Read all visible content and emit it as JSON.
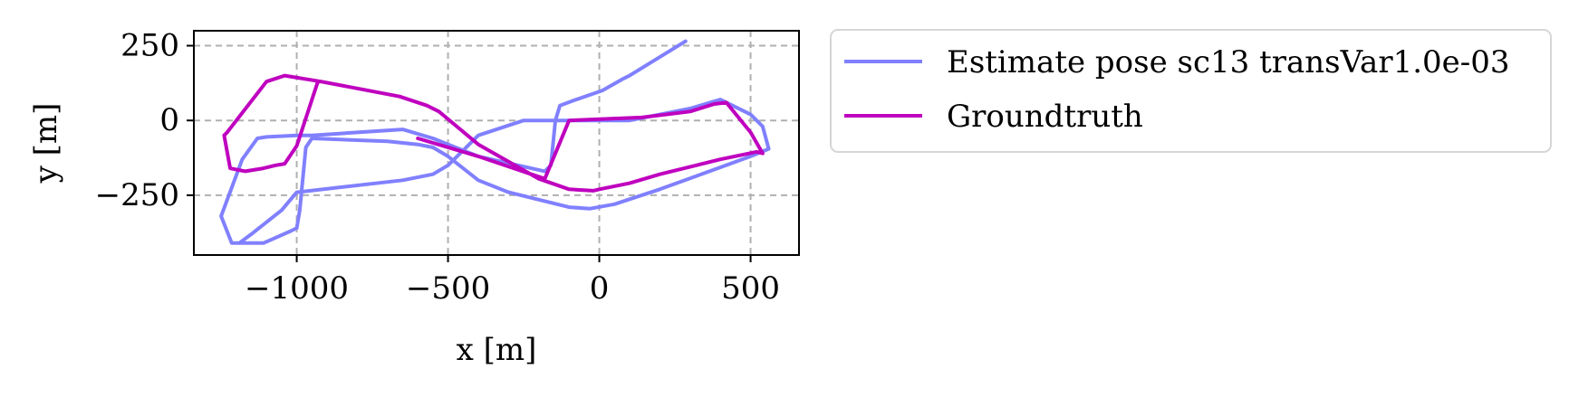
{
  "chart_data": {
    "type": "line",
    "title": "",
    "xlabel": "x [m]",
    "ylabel": "y [m]",
    "xlim": [
      -1340,
      660
    ],
    "ylim": [
      -450,
      300
    ],
    "xticks": [
      -1000,
      -500,
      0,
      500
    ],
    "xtick_labels": [
      "−1000",
      "−500",
      "0",
      "500"
    ],
    "yticks": [
      250,
      0,
      -250
    ],
    "ytick_labels": [
      "250",
      "0",
      "−250"
    ],
    "grid": true,
    "legend_position": "outside-top-right",
    "series": [
      {
        "name": "Estimate pose sc13 transVar1.0e-03",
        "color": "#8080ff",
        "x": [
          285,
          100,
          80,
          10,
          -90,
          -130,
          -145,
          -160,
          -180,
          -400,
          -450,
          -550,
          -650,
          -800,
          -950,
          -1000,
          -1100,
          -1130,
          -1180,
          -1250,
          -1215,
          -1110,
          -1020,
          -1000,
          -990,
          -970,
          -950,
          -700,
          -600,
          -550,
          -500,
          -400,
          -300,
          -100,
          -30,
          50,
          200,
          500,
          560,
          540,
          500,
          400,
          300,
          100,
          -100,
          -250,
          -400,
          -450,
          -500,
          -550,
          -650,
          -1000,
          -1050,
          -1150,
          -1190
        ],
        "y": [
          265,
          150,
          140,
          100,
          65,
          50,
          0,
          -150,
          -170,
          -120,
          -100,
          -60,
          -30,
          -40,
          -50,
          -50,
          -55,
          -60,
          -130,
          -320,
          -410,
          -410,
          -370,
          -360,
          -300,
          -90,
          -60,
          -70,
          -80,
          -90,
          -120,
          -200,
          -240,
          -290,
          -295,
          -280,
          -230,
          -120,
          -95,
          -20,
          20,
          70,
          40,
          0,
          0,
          0,
          -50,
          -100,
          -150,
          -180,
          -200,
          -240,
          -300,
          -380,
          -410
        ]
      },
      {
        "name": "Groundtruth",
        "color": "#bf00bf",
        "x": [
          -920,
          -1040,
          -1100,
          -1230,
          -1240,
          -1220,
          -1170,
          -1110,
          -1070,
          -1040,
          -1000,
          -930,
          -920,
          -660,
          -570,
          -530,
          -400,
          -200,
          -100,
          -20,
          0,
          100,
          200,
          400,
          520,
          540,
          500,
          420,
          380,
          300,
          140,
          -100,
          -180,
          -400,
          -600
        ],
        "y": [
          130,
          150,
          130,
          -40,
          -50,
          -160,
          -170,
          -160,
          -150,
          -145,
          -85,
          130,
          130,
          80,
          50,
          30,
          -80,
          -195,
          -230,
          -235,
          -230,
          -210,
          -180,
          -130,
          -105,
          -110,
          -40,
          60,
          55,
          30,
          10,
          0,
          -195,
          -120,
          -60
        ]
      }
    ]
  }
}
